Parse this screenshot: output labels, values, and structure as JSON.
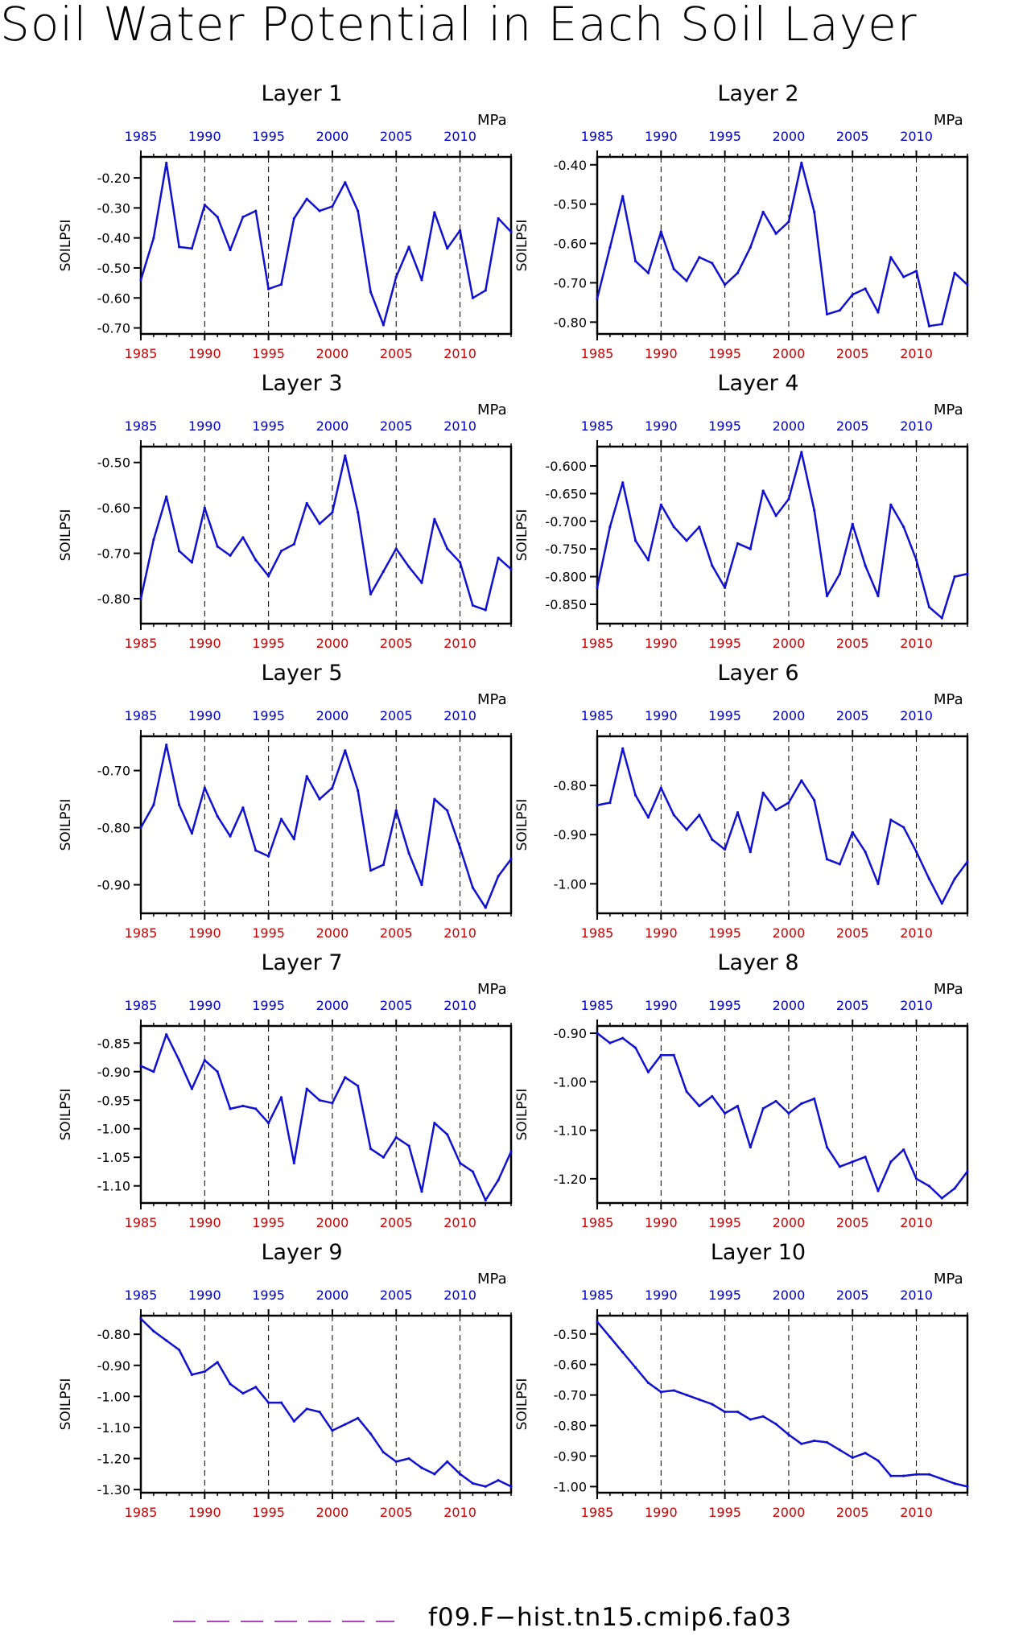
{
  "title": "Soil Water Potential in Each Soil Layer",
  "legend": {
    "label": "f09.F−hist.tn15.cmip6.fa03",
    "color": "#b040c0"
  },
  "colors": {
    "line": "#1010d0",
    "top_ticks": "#0000cc",
    "bottom_ticks": "#cc0000"
  },
  "chart_data": [
    {
      "type": "line",
      "title": "Layer 1",
      "ylabel": "SOILPSI",
      "units": "MPa",
      "xlim": [
        1985,
        2014
      ],
      "ylim": [
        -0.72,
        -0.13
      ],
      "xticks": [
        1985,
        1990,
        1995,
        2000,
        2005,
        2010
      ],
      "xtick_labels": [
        "1985",
        "1990",
        "1995",
        "2000",
        "2005",
        "2010"
      ],
      "yticks": [
        -0.2,
        -0.3,
        -0.4,
        -0.5,
        -0.6,
        -0.7
      ],
      "ytick_labels": [
        "-0.20",
        "-0.30",
        "-0.40",
        "-0.50",
        "-0.60",
        "-0.70"
      ],
      "gridlines_x": [
        1990,
        1995,
        2000,
        2005,
        2010
      ],
      "x": [
        1985,
        1986,
        1987,
        1988,
        1989,
        1990,
        1991,
        1992,
        1993,
        1994,
        1995,
        1996,
        1997,
        1998,
        1999,
        2000,
        2001,
        2002,
        2003,
        2004,
        2005,
        2006,
        2007,
        2008,
        2009,
        2010,
        2011,
        2012,
        2013,
        2014
      ],
      "values": [
        -0.54,
        -0.4,
        -0.15,
        -0.43,
        -0.435,
        -0.29,
        -0.33,
        -0.44,
        -0.33,
        -0.31,
        -0.57,
        -0.555,
        -0.335,
        -0.27,
        -0.31,
        -0.295,
        -0.215,
        -0.31,
        -0.58,
        -0.69,
        -0.53,
        -0.43,
        -0.54,
        -0.315,
        -0.435,
        -0.375,
        -0.6,
        -0.575,
        -0.335,
        -0.38
      ]
    },
    {
      "type": "line",
      "title": "Layer 2",
      "ylabel": "SOILPSI",
      "units": "MPa",
      "xlim": [
        1985,
        2014
      ],
      "ylim": [
        -0.83,
        -0.38
      ],
      "xticks": [
        1985,
        1990,
        1995,
        2000,
        2005,
        2010
      ],
      "xtick_labels": [
        "1985",
        "1990",
        "1995",
        "2000",
        "2005",
        "2010"
      ],
      "yticks": [
        -0.4,
        -0.5,
        -0.6,
        -0.7,
        -0.8
      ],
      "ytick_labels": [
        "-0.40",
        "-0.50",
        "-0.60",
        "-0.70",
        "-0.80"
      ],
      "gridlines_x": [
        1990,
        1995,
        2000,
        2005,
        2010
      ],
      "x": [
        1985,
        1986,
        1987,
        1988,
        1989,
        1990,
        1991,
        1992,
        1993,
        1994,
        1995,
        1996,
        1997,
        1998,
        1999,
        2000,
        2001,
        2002,
        2003,
        2004,
        2005,
        2006,
        2007,
        2008,
        2009,
        2010,
        2011,
        2012,
        2013,
        2014
      ],
      "values": [
        -0.74,
        -0.61,
        -0.48,
        -0.645,
        -0.675,
        -0.57,
        -0.665,
        -0.695,
        -0.635,
        -0.65,
        -0.705,
        -0.675,
        -0.61,
        -0.52,
        -0.575,
        -0.545,
        -0.395,
        -0.52,
        -0.78,
        -0.77,
        -0.73,
        -0.715,
        -0.775,
        -0.635,
        -0.685,
        -0.67,
        -0.81,
        -0.805,
        -0.675,
        -0.705
      ]
    },
    {
      "type": "line",
      "title": "Layer 3",
      "ylabel": "SOILPSI",
      "units": "MPa",
      "xlim": [
        1985,
        2014
      ],
      "ylim": [
        -0.855,
        -0.465
      ],
      "xticks": [
        1985,
        1990,
        1995,
        2000,
        2005,
        2010
      ],
      "xtick_labels": [
        "1985",
        "1990",
        "1995",
        "2000",
        "2005",
        "2010"
      ],
      "yticks": [
        -0.5,
        -0.6,
        -0.7,
        -0.8
      ],
      "ytick_labels": [
        "-0.50",
        "-0.60",
        "-0.70",
        "-0.80"
      ],
      "gridlines_x": [
        1990,
        1995,
        2000,
        2005,
        2010
      ],
      "x": [
        1985,
        1986,
        1987,
        1988,
        1989,
        1990,
        1991,
        1992,
        1993,
        1994,
        1995,
        1996,
        1997,
        1998,
        1999,
        2000,
        2001,
        2002,
        2003,
        2004,
        2005,
        2006,
        2007,
        2008,
        2009,
        2010,
        2011,
        2012,
        2013,
        2014
      ],
      "values": [
        -0.8,
        -0.67,
        -0.575,
        -0.695,
        -0.72,
        -0.6,
        -0.685,
        -0.705,
        -0.665,
        -0.715,
        -0.75,
        -0.695,
        -0.68,
        -0.59,
        -0.635,
        -0.61,
        -0.485,
        -0.61,
        -0.79,
        -0.74,
        -0.69,
        -0.73,
        -0.765,
        -0.625,
        -0.69,
        -0.72,
        -0.815,
        -0.825,
        -0.71,
        -0.735
      ]
    },
    {
      "type": "line",
      "title": "Layer 4",
      "ylabel": "SOILPSI",
      "units": "MPa",
      "xlim": [
        1985,
        2014
      ],
      "ylim": [
        -0.885,
        -0.565
      ],
      "xticks": [
        1985,
        1990,
        1995,
        2000,
        2005,
        2010
      ],
      "xtick_labels": [
        "1985",
        "1990",
        "1995",
        "2000",
        "2005",
        "2010"
      ],
      "yticks": [
        -0.6,
        -0.65,
        -0.7,
        -0.75,
        -0.8,
        -0.85
      ],
      "ytick_labels": [
        "-0.600",
        "-0.650",
        "-0.700",
        "-0.750",
        "-0.800",
        "-0.850"
      ],
      "gridlines_x": [
        1990,
        1995,
        2000,
        2005,
        2010
      ],
      "x": [
        1985,
        1986,
        1987,
        1988,
        1989,
        1990,
        1991,
        1992,
        1993,
        1994,
        1995,
        1996,
        1997,
        1998,
        1999,
        2000,
        2001,
        2002,
        2003,
        2004,
        2005,
        2006,
        2007,
        2008,
        2009,
        2010,
        2011,
        2012,
        2013,
        2014
      ],
      "values": [
        -0.82,
        -0.71,
        -0.63,
        -0.735,
        -0.77,
        -0.67,
        -0.71,
        -0.735,
        -0.71,
        -0.78,
        -0.82,
        -0.74,
        -0.75,
        -0.645,
        -0.69,
        -0.66,
        -0.575,
        -0.68,
        -0.835,
        -0.795,
        -0.705,
        -0.78,
        -0.835,
        -0.67,
        -0.71,
        -0.77,
        -0.855,
        -0.875,
        -0.8,
        -0.795
      ]
    },
    {
      "type": "line",
      "title": "Layer 5",
      "ylabel": "SOILPSI",
      "units": "MPa",
      "xlim": [
        1985,
        2014
      ],
      "ylim": [
        -0.95,
        -0.64
      ],
      "xticks": [
        1985,
        1990,
        1995,
        2000,
        2005,
        2010
      ],
      "xtick_labels": [
        "1985",
        "1990",
        "1995",
        "2000",
        "2005",
        "2010"
      ],
      "yticks": [
        -0.7,
        -0.8,
        -0.9
      ],
      "ytick_labels": [
        "-0.70",
        "-0.80",
        "-0.90"
      ],
      "gridlines_x": [
        1990,
        1995,
        2000,
        2005,
        2010
      ],
      "x": [
        1985,
        1986,
        1987,
        1988,
        1989,
        1990,
        1991,
        1992,
        1993,
        1994,
        1995,
        1996,
        1997,
        1998,
        1999,
        2000,
        2001,
        2002,
        2003,
        2004,
        2005,
        2006,
        2007,
        2008,
        2009,
        2010,
        2011,
        2012,
        2013,
        2014
      ],
      "values": [
        -0.8,
        -0.76,
        -0.655,
        -0.76,
        -0.81,
        -0.73,
        -0.78,
        -0.815,
        -0.765,
        -0.84,
        -0.85,
        -0.785,
        -0.82,
        -0.71,
        -0.75,
        -0.73,
        -0.665,
        -0.735,
        -0.875,
        -0.865,
        -0.77,
        -0.845,
        -0.9,
        -0.75,
        -0.77,
        -0.835,
        -0.905,
        -0.94,
        -0.885,
        -0.855
      ]
    },
    {
      "type": "line",
      "title": "Layer 6",
      "ylabel": "SOILPSI",
      "units": "MPa",
      "xlim": [
        1985,
        2014
      ],
      "ylim": [
        -1.06,
        -0.7
      ],
      "xticks": [
        1985,
        1990,
        1995,
        2000,
        2005,
        2010
      ],
      "xtick_labels": [
        "1985",
        "1990",
        "1995",
        "2000",
        "2005",
        "2010"
      ],
      "yticks": [
        -0.8,
        -0.9,
        -1.0
      ],
      "ytick_labels": [
        "-0.80",
        "-0.90",
        "-1.00"
      ],
      "gridlines_x": [
        1990,
        1995,
        2000,
        2005,
        2010
      ],
      "x": [
        1985,
        1986,
        1987,
        1988,
        1989,
        1990,
        1991,
        1992,
        1993,
        1994,
        1995,
        1996,
        1997,
        1998,
        1999,
        2000,
        2001,
        2002,
        2003,
        2004,
        2005,
        2006,
        2007,
        2008,
        2009,
        2010,
        2011,
        2012,
        2013,
        2014
      ],
      "values": [
        -0.84,
        -0.835,
        -0.725,
        -0.82,
        -0.865,
        -0.805,
        -0.86,
        -0.89,
        -0.86,
        -0.91,
        -0.93,
        -0.855,
        -0.935,
        -0.815,
        -0.85,
        -0.835,
        -0.79,
        -0.83,
        -0.95,
        -0.96,
        -0.895,
        -0.935,
        -1.0,
        -0.87,
        -0.885,
        -0.935,
        -0.99,
        -1.04,
        -0.99,
        -0.955
      ]
    },
    {
      "type": "line",
      "title": "Layer 7",
      "ylabel": "SOILPSI",
      "units": "MPa",
      "xlim": [
        1985,
        2014
      ],
      "ylim": [
        -1.13,
        -0.82
      ],
      "xticks": [
        1985,
        1990,
        1995,
        2000,
        2005,
        2010
      ],
      "xtick_labels": [
        "1985",
        "1990",
        "1995",
        "2000",
        "2005",
        "2010"
      ],
      "yticks": [
        -0.85,
        -0.9,
        -0.95,
        -1.0,
        -1.05,
        -1.1
      ],
      "ytick_labels": [
        "-0.85",
        "-0.90",
        "-0.95",
        "-1.00",
        "-1.05",
        "-1.10"
      ],
      "gridlines_x": [
        1990,
        1995,
        2000,
        2005,
        2010
      ],
      "x": [
        1985,
        1986,
        1987,
        1988,
        1989,
        1990,
        1991,
        1992,
        1993,
        1994,
        1995,
        1996,
        1997,
        1998,
        1999,
        2000,
        2001,
        2002,
        2003,
        2004,
        2005,
        2006,
        2007,
        2008,
        2009,
        2010,
        2011,
        2012,
        2013,
        2014
      ],
      "values": [
        -0.89,
        -0.9,
        -0.835,
        -0.88,
        -0.93,
        -0.88,
        -0.9,
        -0.965,
        -0.96,
        -0.965,
        -0.99,
        -0.945,
        -1.06,
        -0.93,
        -0.95,
        -0.955,
        -0.91,
        -0.925,
        -1.035,
        -1.05,
        -1.015,
        -1.03,
        -1.11,
        -0.99,
        -1.01,
        -1.06,
        -1.075,
        -1.125,
        -1.09,
        -1.04
      ]
    },
    {
      "type": "line",
      "title": "Layer 8",
      "ylabel": "SOILPSI",
      "units": "MPa",
      "xlim": [
        1985,
        2014
      ],
      "ylim": [
        -1.25,
        -0.885
      ],
      "xticks": [
        1985,
        1990,
        1995,
        2000,
        2005,
        2010
      ],
      "xtick_labels": [
        "1985",
        "1990",
        "1995",
        "2000",
        "2005",
        "2010"
      ],
      "yticks": [
        -0.9,
        -1.0,
        -1.1,
        -1.2
      ],
      "ytick_labels": [
        "-0.90",
        "-1.00",
        "-1.10",
        "-1.20"
      ],
      "gridlines_x": [
        1990,
        1995,
        2000,
        2005,
        2010
      ],
      "x": [
        1985,
        1986,
        1987,
        1988,
        1989,
        1990,
        1991,
        1992,
        1993,
        1994,
        1995,
        1996,
        1997,
        1998,
        1999,
        2000,
        2001,
        2002,
        2003,
        2004,
        2005,
        2006,
        2007,
        2008,
        2009,
        2010,
        2011,
        2012,
        2013,
        2014
      ],
      "values": [
        -0.9,
        -0.92,
        -0.91,
        -0.93,
        -0.98,
        -0.945,
        -0.945,
        -1.02,
        -1.05,
        -1.03,
        -1.065,
        -1.05,
        -1.135,
        -1.055,
        -1.04,
        -1.065,
        -1.045,
        -1.035,
        -1.135,
        -1.175,
        -1.165,
        -1.155,
        -1.225,
        -1.165,
        -1.14,
        -1.2,
        -1.215,
        -1.24,
        -1.22,
        -1.185
      ]
    },
    {
      "type": "line",
      "title": "Layer 9",
      "ylabel": "SOILPSI",
      "units": "MPa",
      "xlim": [
        1985,
        2014
      ],
      "ylim": [
        -1.31,
        -0.74
      ],
      "xticks": [
        1985,
        1990,
        1995,
        2000,
        2005,
        2010
      ],
      "xtick_labels": [
        "1985",
        "1990",
        "1995",
        "2000",
        "2005",
        "2010"
      ],
      "yticks": [
        -0.8,
        -0.9,
        -1.0,
        -1.1,
        -1.2,
        -1.3
      ],
      "ytick_labels": [
        "-0.80",
        "-0.90",
        "-1.00",
        "-1.10",
        "-1.20",
        "-1.30"
      ],
      "gridlines_x": [
        1990,
        1995,
        2000,
        2005,
        2010
      ],
      "x": [
        1985,
        1986,
        1987,
        1988,
        1989,
        1990,
        1991,
        1992,
        1993,
        1994,
        1995,
        1996,
        1997,
        1998,
        1999,
        2000,
        2001,
        2002,
        2003,
        2004,
        2005,
        2006,
        2007,
        2008,
        2009,
        2010,
        2011,
        2012,
        2013,
        2014
      ],
      "values": [
        -0.75,
        -0.79,
        -0.82,
        -0.85,
        -0.93,
        -0.92,
        -0.89,
        -0.96,
        -0.99,
        -0.97,
        -1.02,
        -1.02,
        -1.08,
        -1.04,
        -1.05,
        -1.11,
        -1.09,
        -1.07,
        -1.12,
        -1.18,
        -1.21,
        -1.2,
        -1.23,
        -1.25,
        -1.21,
        -1.25,
        -1.28,
        -1.29,
        -1.27,
        -1.29
      ]
    },
    {
      "type": "line",
      "title": "Layer 10",
      "ylabel": "SOILPSI",
      "units": "MPa",
      "xlim": [
        1985,
        2014
      ],
      "ylim": [
        -1.02,
        -0.44
      ],
      "xticks": [
        1985,
        1990,
        1995,
        2000,
        2005,
        2010
      ],
      "xtick_labels": [
        "1985",
        "1990",
        "1995",
        "2000",
        "2005",
        "2010"
      ],
      "yticks": [
        -0.5,
        -0.6,
        -0.7,
        -0.8,
        -0.9,
        -1.0
      ],
      "ytick_labels": [
        "-0.50",
        "-0.60",
        "-0.70",
        "-0.80",
        "-0.90",
        "-1.00"
      ],
      "gridlines_x": [
        1990,
        1995,
        2000,
        2005,
        2010
      ],
      "x": [
        1985,
        1986,
        1987,
        1988,
        1989,
        1990,
        1991,
        1992,
        1993,
        1994,
        1995,
        1996,
        1997,
        1998,
        1999,
        2000,
        2001,
        2002,
        2003,
        2004,
        2005,
        2006,
        2007,
        2008,
        2009,
        2010,
        2011,
        2012,
        2013,
        2014
      ],
      "values": [
        -0.46,
        -0.51,
        -0.56,
        -0.61,
        -0.66,
        -0.69,
        -0.685,
        -0.7,
        -0.715,
        -0.73,
        -0.755,
        -0.755,
        -0.78,
        -0.77,
        -0.795,
        -0.83,
        -0.86,
        -0.85,
        -0.855,
        -0.88,
        -0.905,
        -0.89,
        -0.915,
        -0.965,
        -0.965,
        -0.96,
        -0.96,
        -0.975,
        -0.99,
        -1.0
      ]
    }
  ]
}
